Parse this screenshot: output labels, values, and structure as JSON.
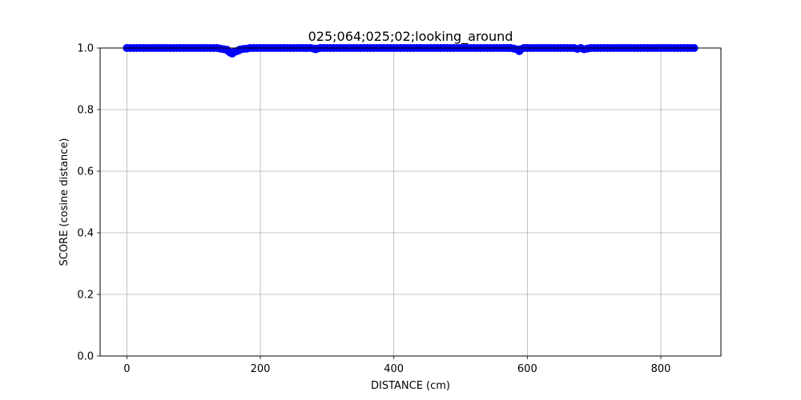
{
  "chart_data": {
    "type": "scatter",
    "title": "025;064;025;02;looking_around",
    "xlabel": "DISTANCE (cm)",
    "ylabel": "SCORE (cosine distance)",
    "xlim": [
      -40,
      890
    ],
    "ylim": [
      0.0,
      1.0
    ],
    "x_ticks": [
      0,
      200,
      400,
      600,
      800
    ],
    "x_tick_labels": [
      "0",
      "200",
      "400",
      "600",
      "800"
    ],
    "y_ticks": [
      0.0,
      0.2,
      0.4,
      0.6,
      0.8,
      1.0
    ],
    "y_tick_labels": [
      "0.0",
      "0.2",
      "0.4",
      "0.6",
      "0.8",
      "1.0"
    ],
    "grid": true,
    "marker": "circle",
    "series": [
      {
        "color": "#0000ff",
        "x": [
          0,
          5,
          10,
          15,
          20,
          25,
          30,
          35,
          40,
          45,
          50,
          55,
          60,
          65,
          70,
          75,
          80,
          85,
          90,
          95,
          100,
          105,
          110,
          115,
          120,
          125,
          130,
          135,
          140,
          145,
          150,
          152,
          155,
          158,
          160,
          162,
          165,
          168,
          170,
          175,
          180,
          185,
          190,
          195,
          200,
          205,
          210,
          215,
          220,
          225,
          230,
          235,
          240,
          245,
          250,
          255,
          260,
          265,
          270,
          275,
          280,
          283,
          285,
          290,
          295,
          300,
          305,
          310,
          315,
          320,
          325,
          330,
          335,
          340,
          345,
          350,
          355,
          360,
          365,
          370,
          375,
          380,
          385,
          390,
          395,
          400,
          405,
          410,
          415,
          420,
          425,
          430,
          435,
          440,
          445,
          450,
          455,
          460,
          465,
          470,
          475,
          480,
          485,
          490,
          495,
          500,
          505,
          510,
          515,
          520,
          525,
          530,
          535,
          540,
          545,
          550,
          555,
          560,
          565,
          570,
          575,
          580,
          585,
          588,
          590,
          595,
          600,
          605,
          610,
          615,
          620,
          625,
          630,
          635,
          640,
          645,
          650,
          655,
          660,
          665,
          670,
          675,
          680,
          685,
          690,
          695,
          700,
          705,
          710,
          715,
          720,
          725,
          730,
          735,
          740,
          745,
          750,
          755,
          760,
          765,
          770,
          775,
          780,
          785,
          790,
          795,
          800,
          805,
          810,
          815,
          820,
          825,
          830,
          835,
          840,
          845,
          850
        ],
        "y": [
          1.0,
          1.0,
          1.0,
          1.0,
          1.0,
          1.0,
          1.0,
          1.0,
          1.0,
          1.0,
          1.0,
          1.0,
          1.0,
          1.0,
          1.0,
          1.0,
          1.0,
          1.0,
          1.0,
          1.0,
          1.0,
          1.0,
          1.0,
          1.0,
          1.0,
          1.0,
          1.0,
          1.0,
          0.998,
          0.996,
          0.994,
          0.99,
          0.985,
          0.982,
          0.986,
          0.988,
          0.99,
          0.993,
          0.995,
          0.997,
          0.998,
          1.0,
          1.0,
          1.0,
          1.0,
          1.0,
          1.0,
          1.0,
          1.0,
          1.0,
          1.0,
          1.0,
          1.0,
          1.0,
          1.0,
          1.0,
          1.0,
          1.0,
          1.0,
          1.0,
          0.998,
          0.996,
          0.998,
          1.0,
          1.0,
          1.0,
          1.0,
          1.0,
          1.0,
          1.0,
          1.0,
          1.0,
          1.0,
          1.0,
          1.0,
          1.0,
          1.0,
          1.0,
          1.0,
          1.0,
          1.0,
          1.0,
          1.0,
          1.0,
          1.0,
          1.0,
          1.0,
          1.0,
          1.0,
          1.0,
          1.0,
          1.0,
          1.0,
          1.0,
          1.0,
          1.0,
          1.0,
          1.0,
          1.0,
          1.0,
          1.0,
          1.0,
          1.0,
          1.0,
          1.0,
          1.0,
          1.0,
          1.0,
          1.0,
          1.0,
          1.0,
          1.0,
          1.0,
          1.0,
          1.0,
          1.0,
          1.0,
          1.0,
          1.0,
          1.0,
          1.0,
          0.998,
          0.995,
          0.99,
          0.996,
          1.0,
          1.0,
          1.0,
          1.0,
          1.0,
          1.0,
          1.0,
          1.0,
          1.0,
          1.0,
          1.0,
          1.0,
          1.0,
          1.0,
          1.0,
          1.0,
          0.997,
          1.0,
          0.996,
          0.998,
          1.0,
          1.0,
          1.0,
          1.0,
          1.0,
          1.0,
          1.0,
          1.0,
          1.0,
          1.0,
          1.0,
          1.0,
          1.0,
          1.0,
          1.0,
          1.0,
          1.0,
          1.0,
          1.0,
          1.0,
          1.0,
          1.0,
          1.0,
          1.0,
          1.0,
          1.0,
          1.0,
          1.0,
          1.0,
          1.0,
          1.0,
          1.0
        ]
      }
    ]
  }
}
